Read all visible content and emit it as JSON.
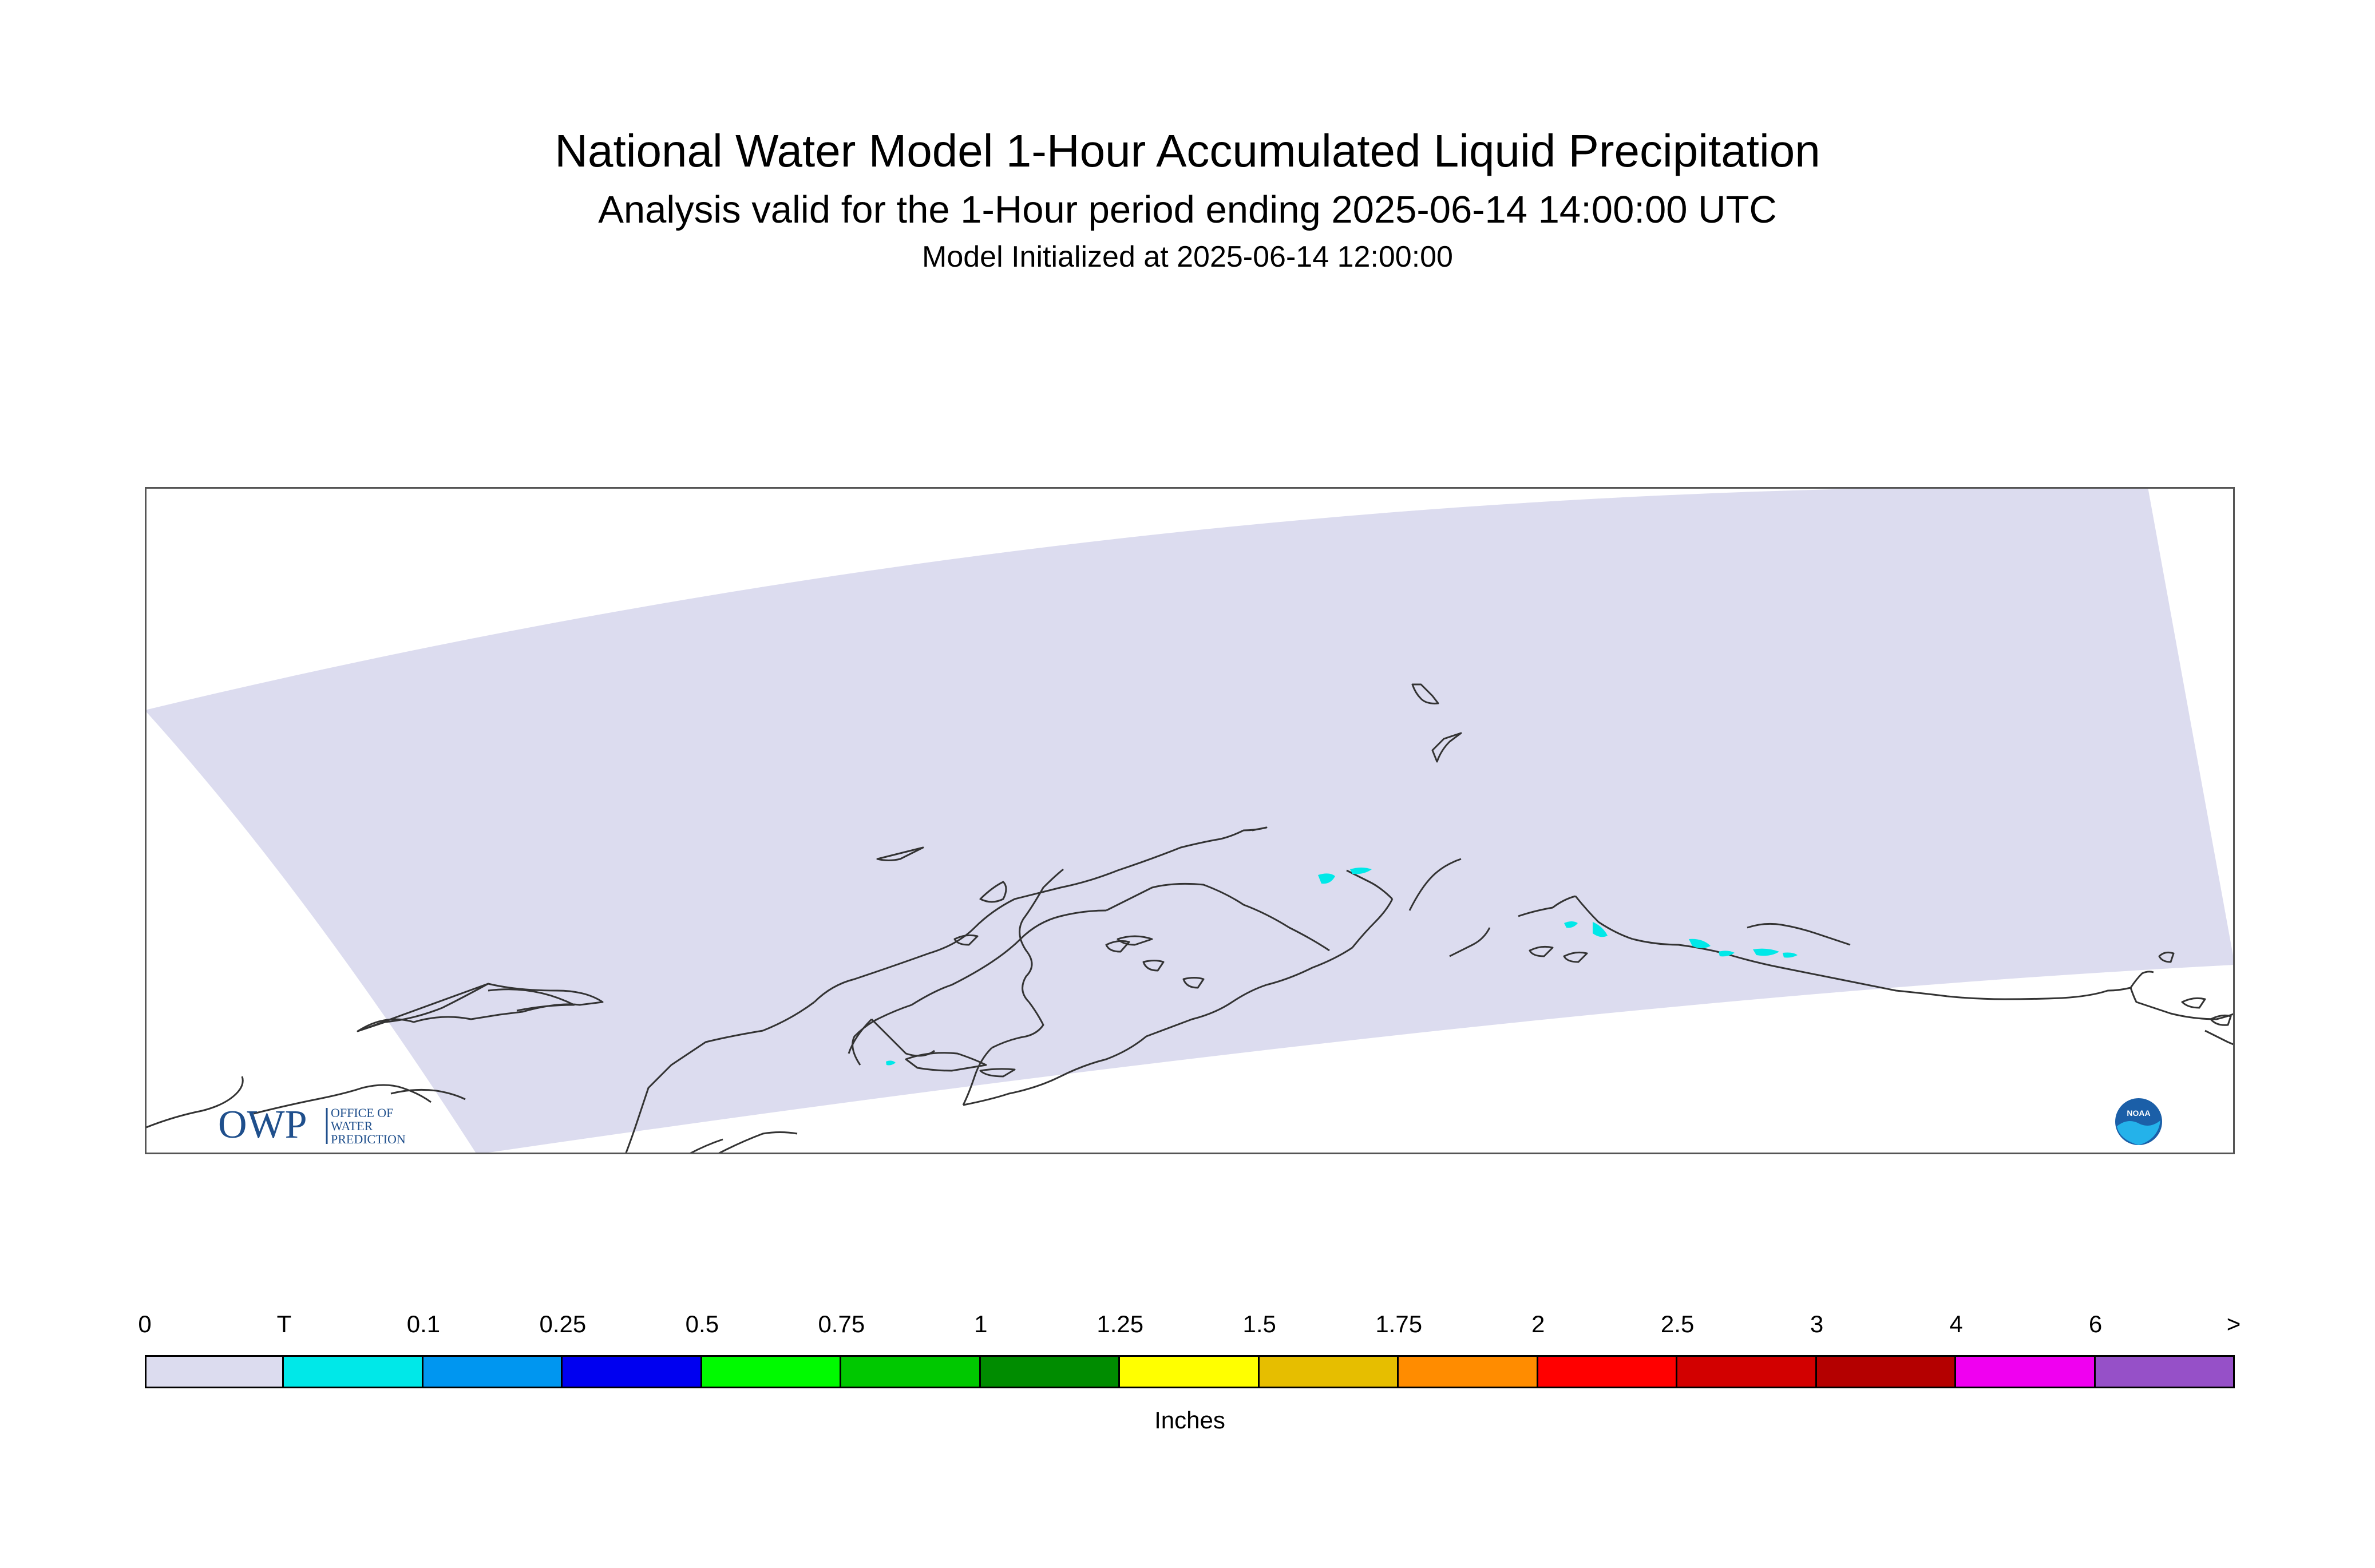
{
  "header": {
    "title": "National Water Model 1-Hour Accumulated Liquid Precipitation",
    "subtitle": "Analysis valid for the 1-Hour period ending 2025-06-14 14:00:00 UTC",
    "init": "Model Initialized at 2025-06-14 12:00:00"
  },
  "map": {
    "domain_fill": "#dcdcef",
    "coast_color": "#333333",
    "precip_color": "#00e8e8",
    "logos": {
      "owp_mark": "OWP",
      "owp_text": [
        "OFFICE OF",
        "WATER",
        "PREDICTION"
      ],
      "owp_color": "#1f4f8c",
      "noaa_mark": "NOAA",
      "noaa_icon": "noaa-logo-icon"
    }
  },
  "legend": {
    "labels": [
      "0",
      "T",
      "0.1",
      "0.25",
      "0.5",
      "0.75",
      "1",
      "1.25",
      "1.5",
      "1.75",
      "2",
      "2.5",
      "3",
      "4",
      "6",
      ">"
    ],
    "colors": [
      "#dcdcef",
      "#00e8e8",
      "#0096f0",
      "#0000f0",
      "#00fa00",
      "#00c800",
      "#008c00",
      "#ffff00",
      "#e6be00",
      "#ff8c00",
      "#ff0000",
      "#d20000",
      "#b40000",
      "#f000f0",
      "#9650c8"
    ],
    "units": "Inches"
  }
}
